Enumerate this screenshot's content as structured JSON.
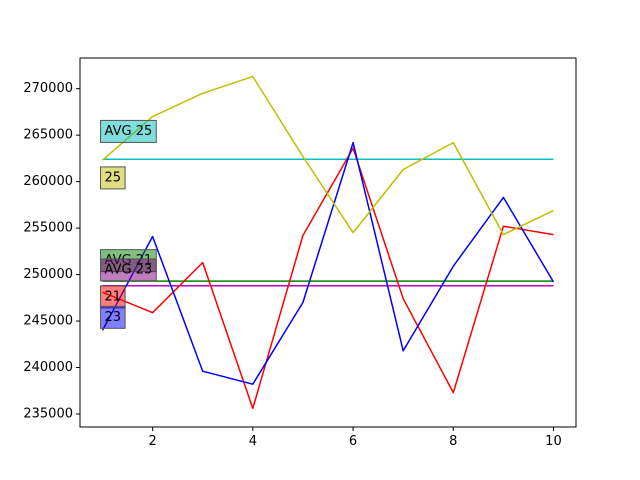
{
  "chart_data": {
    "type": "line",
    "title": "",
    "xlabel": "",
    "ylabel": "",
    "xlim": [
      0.55,
      10.45
    ],
    "ylim": [
      233600,
      273300
    ],
    "x": [
      1,
      2,
      3,
      4,
      5,
      6,
      7,
      8,
      9,
      10
    ],
    "xticks": [
      2,
      4,
      6,
      8,
      10
    ],
    "yticks": [
      235000,
      240000,
      245000,
      250000,
      255000,
      260000,
      265000,
      270000
    ],
    "grid": false,
    "series": [
      {
        "name": "21",
        "color": "#ff0000",
        "values": [
          248100,
          245900,
          251300,
          235600,
          254200,
          263600,
          247400,
          237300,
          255200,
          254300
        ]
      },
      {
        "name": "23",
        "color": "#0000ff",
        "values": [
          244000,
          254100,
          239600,
          238200,
          247000,
          264200,
          241800,
          250900,
          258300,
          249200
        ]
      },
      {
        "name": "25",
        "color": "#bfbf00",
        "values": [
          262300,
          267000,
          269500,
          271300,
          262700,
          254500,
          261300,
          264200,
          254300,
          256900
        ]
      }
    ],
    "averages": [
      {
        "name": "AVG 21",
        "color": "#008000",
        "value": 249300
      },
      {
        "name": "AVG 23",
        "color": "#bf00bf",
        "value": 248800
      },
      {
        "name": "AVG 25",
        "color": "#00bfbf",
        "value": 262400
      }
    ],
    "annotations": [
      {
        "text": "AVG 25",
        "x": 1,
        "y": 265400,
        "color": "#00bfbf"
      },
      {
        "text": "25",
        "x": 1,
        "y": 260400,
        "color": "#bfbf00"
      },
      {
        "text": "AVG 21",
        "x": 1,
        "y": 251500,
        "color": "#008000"
      },
      {
        "text": "AVG 23",
        "x": 1,
        "y": 250500,
        "color": "#800080"
      },
      {
        "text": "21",
        "x": 1,
        "y": 247600,
        "color": "#ff0000"
      },
      {
        "text": "23",
        "x": 1,
        "y": 245400,
        "color": "#0000ff"
      }
    ]
  }
}
